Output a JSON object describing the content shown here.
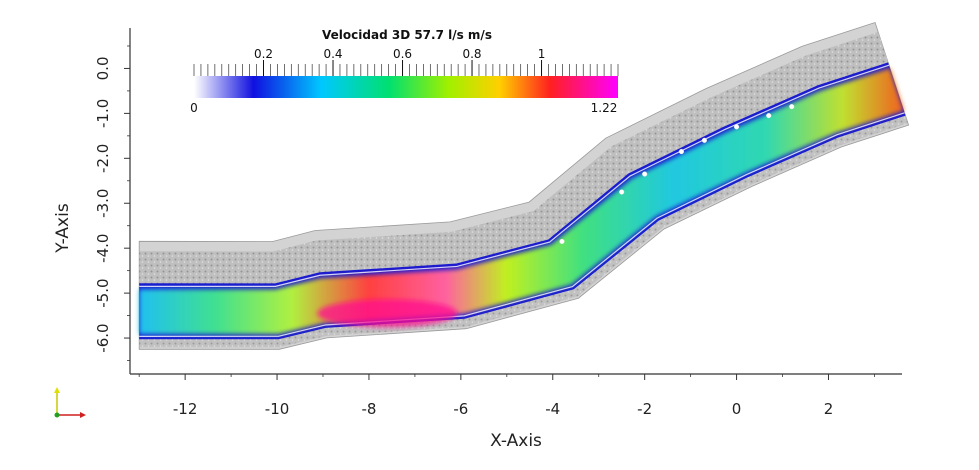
{
  "chart_data": {
    "type": "heatmap",
    "title": "",
    "xlabel": "X-Axis",
    "ylabel": "Y-Axis",
    "xlim": [
      -13.2,
      3.6
    ],
    "ylim": [
      -6.8,
      0.9
    ],
    "xticks": [
      -12,
      -10,
      -8,
      -6,
      -4,
      -2,
      0,
      2
    ],
    "xtick_labels": [
      "-12",
      "-10",
      "-8",
      "-6",
      "-4",
      "-2",
      "0",
      "2"
    ],
    "yticks": [
      0.0,
      -1.0,
      -2.0,
      -3.0,
      -4.0,
      -5.0,
      -6.0
    ],
    "ytick_labels": [
      "0.0",
      "-1.0",
      "-2.0",
      "-3.0",
      "-4.0",
      "-5.0",
      "-6.0"
    ],
    "colorbar": {
      "title": "Velocidad 3D 57.7 l/s m/s",
      "min": 0,
      "max": 1.22,
      "min_label": "0",
      "max_label": "1.22",
      "tick_values": [
        0.2,
        0.4,
        0.6,
        0.8,
        1.0
      ],
      "tick_labels": [
        "0.2",
        "0.4",
        "0.6",
        "0.8",
        "1"
      ],
      "colormap": [
        "#ffffff",
        "#1010e0",
        "#00c8ff",
        "#00e070",
        "#a0f000",
        "#ffd000",
        "#ff2020",
        "#ff00ff"
      ]
    },
    "channel_centerline": [
      {
        "x": -13.0,
        "y": -5.45
      },
      {
        "x": -10.0,
        "y": -5.45
      },
      {
        "x": -9.0,
        "y": -5.2
      },
      {
        "x": -6.0,
        "y": -5.0
      },
      {
        "x": -3.8,
        "y": -4.4
      },
      {
        "x": -2.0,
        "y": -2.9
      },
      {
        "x": 0.0,
        "y": -1.9
      },
      {
        "x": 2.0,
        "y": -1.0
      },
      {
        "x": 3.5,
        "y": -0.5
      }
    ],
    "marker_points": [
      {
        "x": -3.8,
        "y": -3.85
      },
      {
        "x": -2.5,
        "y": -2.75
      },
      {
        "x": -2.0,
        "y": -2.35
      },
      {
        "x": -1.2,
        "y": -1.85
      },
      {
        "x": -0.7,
        "y": -1.6
      },
      {
        "x": 0.0,
        "y": -1.3
      },
      {
        "x": 0.7,
        "y": -1.05
      },
      {
        "x": 1.2,
        "y": -0.85
      }
    ]
  }
}
